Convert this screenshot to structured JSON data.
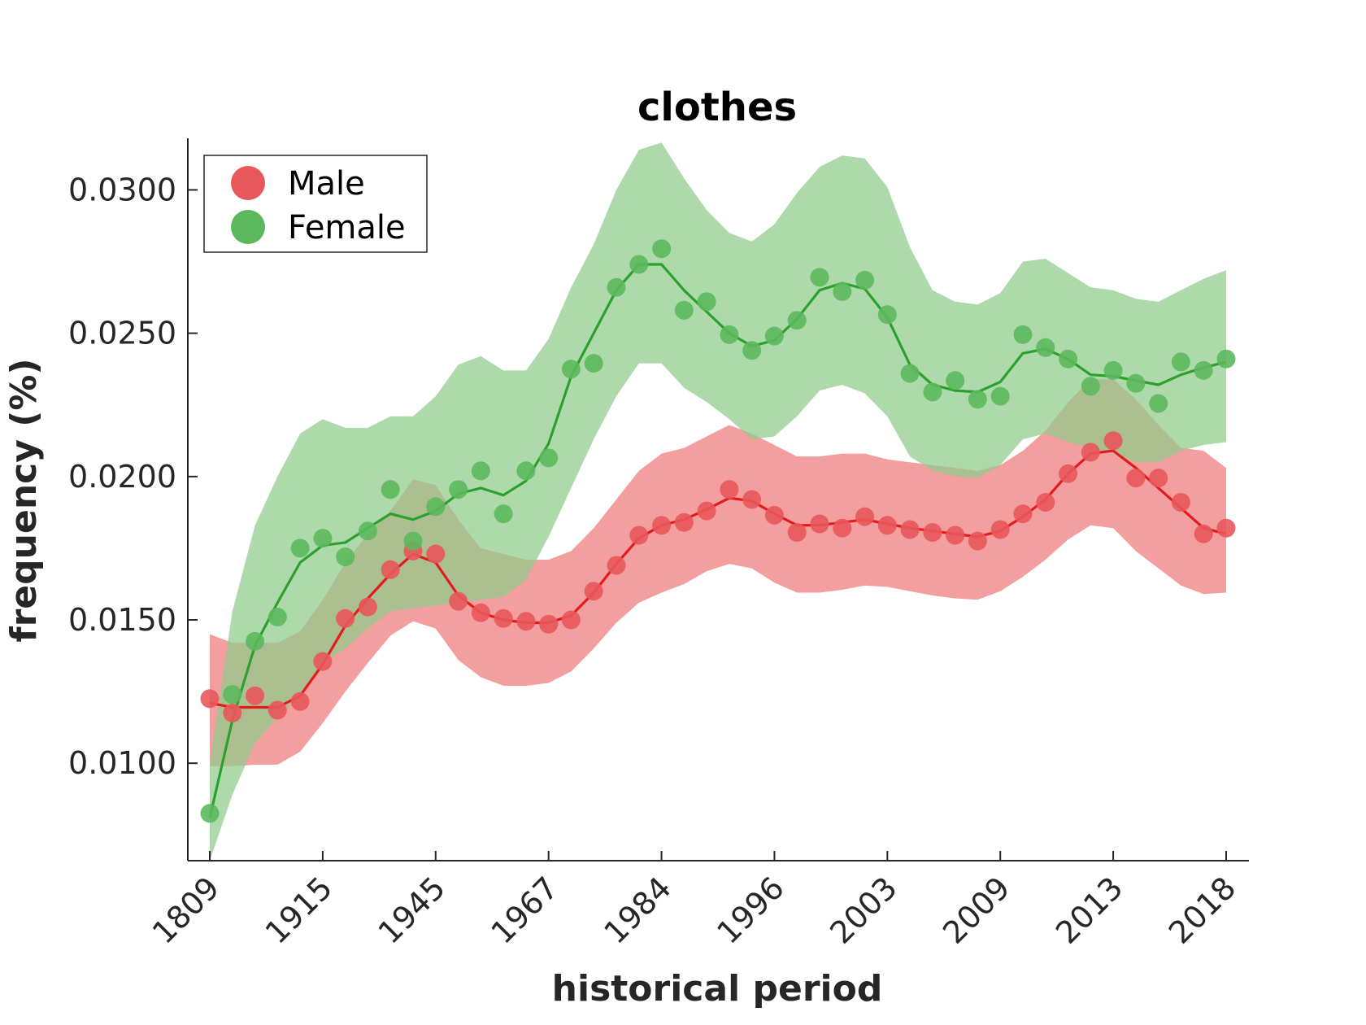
{
  "chart_data": {
    "type": "line",
    "title": "clothes",
    "xlabel": "historical period",
    "ylabel": "frequency (%)",
    "ylim": [
      0.0066,
      0.0318
    ],
    "grid": false,
    "legend_placement": "top-left",
    "x_tick_labels": [
      "1809",
      "1915",
      "1945",
      "1967",
      "1984",
      "1996",
      "2003",
      "2009",
      "2013",
      "2018"
    ],
    "x_tick_positions": [
      0,
      5,
      10,
      15,
      20,
      25,
      30,
      35,
      40,
      45
    ],
    "y_ticks": [
      0.01,
      0.015,
      0.02,
      0.025,
      0.03
    ],
    "y_tick_labels": [
      "0.0100",
      "0.0150",
      "0.0200",
      "0.0250",
      "0.0300"
    ],
    "series": [
      {
        "name": "Male",
        "color": "#e41a1c",
        "point_color": "#e8575a",
        "band_color": "#ee7a7c",
        "points": [
          0.01225,
          0.01175,
          0.01235,
          0.01185,
          0.01215,
          0.01355,
          0.01505,
          0.01545,
          0.01675,
          0.0174,
          0.0173,
          0.01565,
          0.01525,
          0.01505,
          0.01495,
          0.01485,
          0.015,
          0.016,
          0.0169,
          0.01795,
          0.0183,
          0.0184,
          0.0188,
          0.01955,
          0.0192,
          0.01865,
          0.01805,
          0.01835,
          0.0182,
          0.0186,
          0.0183,
          0.01815,
          0.01805,
          0.01795,
          0.01775,
          0.01815,
          0.0187,
          0.0191,
          0.0201,
          0.02085,
          0.02125,
          0.01995,
          0.01995,
          0.0191,
          0.018,
          0.0182
        ],
        "smooth": [
          0.0121,
          0.01195,
          0.01195,
          0.01195,
          0.01235,
          0.01345,
          0.0148,
          0.01575,
          0.0166,
          0.0173,
          0.017,
          0.01585,
          0.01525,
          0.015,
          0.0149,
          0.0149,
          0.01515,
          0.01595,
          0.01695,
          0.01785,
          0.0183,
          0.0185,
          0.01885,
          0.01925,
          0.01915,
          0.0187,
          0.0183,
          0.0183,
          0.0184,
          0.0185,
          0.01835,
          0.0182,
          0.0181,
          0.018,
          0.0179,
          0.0181,
          0.0186,
          0.0192,
          0.0201,
          0.0208,
          0.0209,
          0.0203,
          0.0196,
          0.0189,
          0.0182,
          0.018
        ],
        "upper": [
          0.0145,
          0.0142,
          0.0142,
          0.0142,
          0.0146,
          0.0157,
          0.017,
          0.018,
          0.0188,
          0.0199,
          0.0197,
          0.0185,
          0.0175,
          0.0173,
          0.0171,
          0.0171,
          0.0174,
          0.0182,
          0.0192,
          0.0202,
          0.0208,
          0.021,
          0.0214,
          0.0218,
          0.0215,
          0.0211,
          0.0207,
          0.0207,
          0.0208,
          0.0208,
          0.0206,
          0.0205,
          0.0204,
          0.0203,
          0.0202,
          0.0204,
          0.0209,
          0.0216,
          0.0226,
          0.0234,
          0.0234,
          0.0227,
          0.0218,
          0.021,
          0.0209,
          0.0203
        ],
        "lower": [
          0.0099,
          0.0099,
          0.00995,
          0.00995,
          0.0104,
          0.0114,
          0.0125,
          0.0135,
          0.01445,
          0.01495,
          0.0147,
          0.0136,
          0.013,
          0.0127,
          0.0127,
          0.0128,
          0.0132,
          0.014,
          0.0149,
          0.0156,
          0.01595,
          0.01625,
          0.0167,
          0.01695,
          0.0168,
          0.0163,
          0.01595,
          0.01595,
          0.01605,
          0.0162,
          0.01615,
          0.016,
          0.01585,
          0.01575,
          0.0157,
          0.016,
          0.0165,
          0.0171,
          0.0178,
          0.0183,
          0.0182,
          0.0174,
          0.0168,
          0.0162,
          0.0159,
          0.01595
        ]
      },
      {
        "name": "Female",
        "color": "#2ca02c",
        "point_color": "#5cb85c",
        "band_color": "#8fcc8a",
        "points": [
          0.00825,
          0.0124,
          0.01425,
          0.0151,
          0.0175,
          0.01785,
          0.0172,
          0.0181,
          0.01955,
          0.01775,
          0.01895,
          0.01955,
          0.0202,
          0.0187,
          0.0202,
          0.02065,
          0.02375,
          0.02395,
          0.0266,
          0.0274,
          0.02795,
          0.0258,
          0.0261,
          0.02495,
          0.0244,
          0.0249,
          0.02545,
          0.02695,
          0.02645,
          0.02685,
          0.02565,
          0.0236,
          0.02295,
          0.02335,
          0.0227,
          0.0228,
          0.02495,
          0.0245,
          0.0241,
          0.02315,
          0.0237,
          0.02325,
          0.02255,
          0.024,
          0.0237,
          0.0241
        ],
        "smooth": [
          0.0081,
          0.0115,
          0.0141,
          0.0156,
          0.017,
          0.0176,
          0.0177,
          0.0182,
          0.0187,
          0.0185,
          0.0188,
          0.0194,
          0.0196,
          0.01935,
          0.01985,
          0.02115,
          0.0235,
          0.025,
          0.0265,
          0.0274,
          0.0274,
          0.0265,
          0.02575,
          0.025,
          0.02455,
          0.02475,
          0.0255,
          0.0265,
          0.02675,
          0.02655,
          0.02555,
          0.0239,
          0.0232,
          0.023,
          0.02295,
          0.0233,
          0.0243,
          0.02445,
          0.0241,
          0.02355,
          0.0235,
          0.02335,
          0.0232,
          0.02355,
          0.0238,
          0.024
        ],
        "upper": [
          0.01,
          0.0153,
          0.0183,
          0.02,
          0.0215,
          0.022,
          0.0217,
          0.0217,
          0.0221,
          0.0221,
          0.0228,
          0.0239,
          0.0242,
          0.0237,
          0.0237,
          0.0248,
          0.0266,
          0.0281,
          0.03,
          0.0314,
          0.03165,
          0.0304,
          0.0293,
          0.0285,
          0.0282,
          0.0288,
          0.0299,
          0.0308,
          0.0312,
          0.0311,
          0.0301,
          0.028,
          0.0265,
          0.0261,
          0.026,
          0.0264,
          0.0275,
          0.0276,
          0.0271,
          0.0266,
          0.0265,
          0.0262,
          0.0261,
          0.0265,
          0.0269,
          0.0272
        ],
        "lower": [
          0.0066,
          0.0089,
          0.0107,
          0.0116,
          0.0124,
          0.0135,
          0.014,
          0.0147,
          0.0153,
          0.0154,
          0.0155,
          0.0156,
          0.0157,
          0.0158,
          0.0164,
          0.0179,
          0.0196,
          0.0213,
          0.0228,
          0.02395,
          0.02395,
          0.0231,
          0.0226,
          0.022,
          0.0213,
          0.0214,
          0.0221,
          0.023,
          0.0232,
          0.0229,
          0.0221,
          0.0207,
          0.0202,
          0.02,
          0.01995,
          0.0204,
          0.0213,
          0.0215,
          0.0212,
          0.021,
          0.0208,
          0.0205,
          0.0205,
          0.0209,
          0.0211,
          0.0212
        ]
      }
    ]
  }
}
